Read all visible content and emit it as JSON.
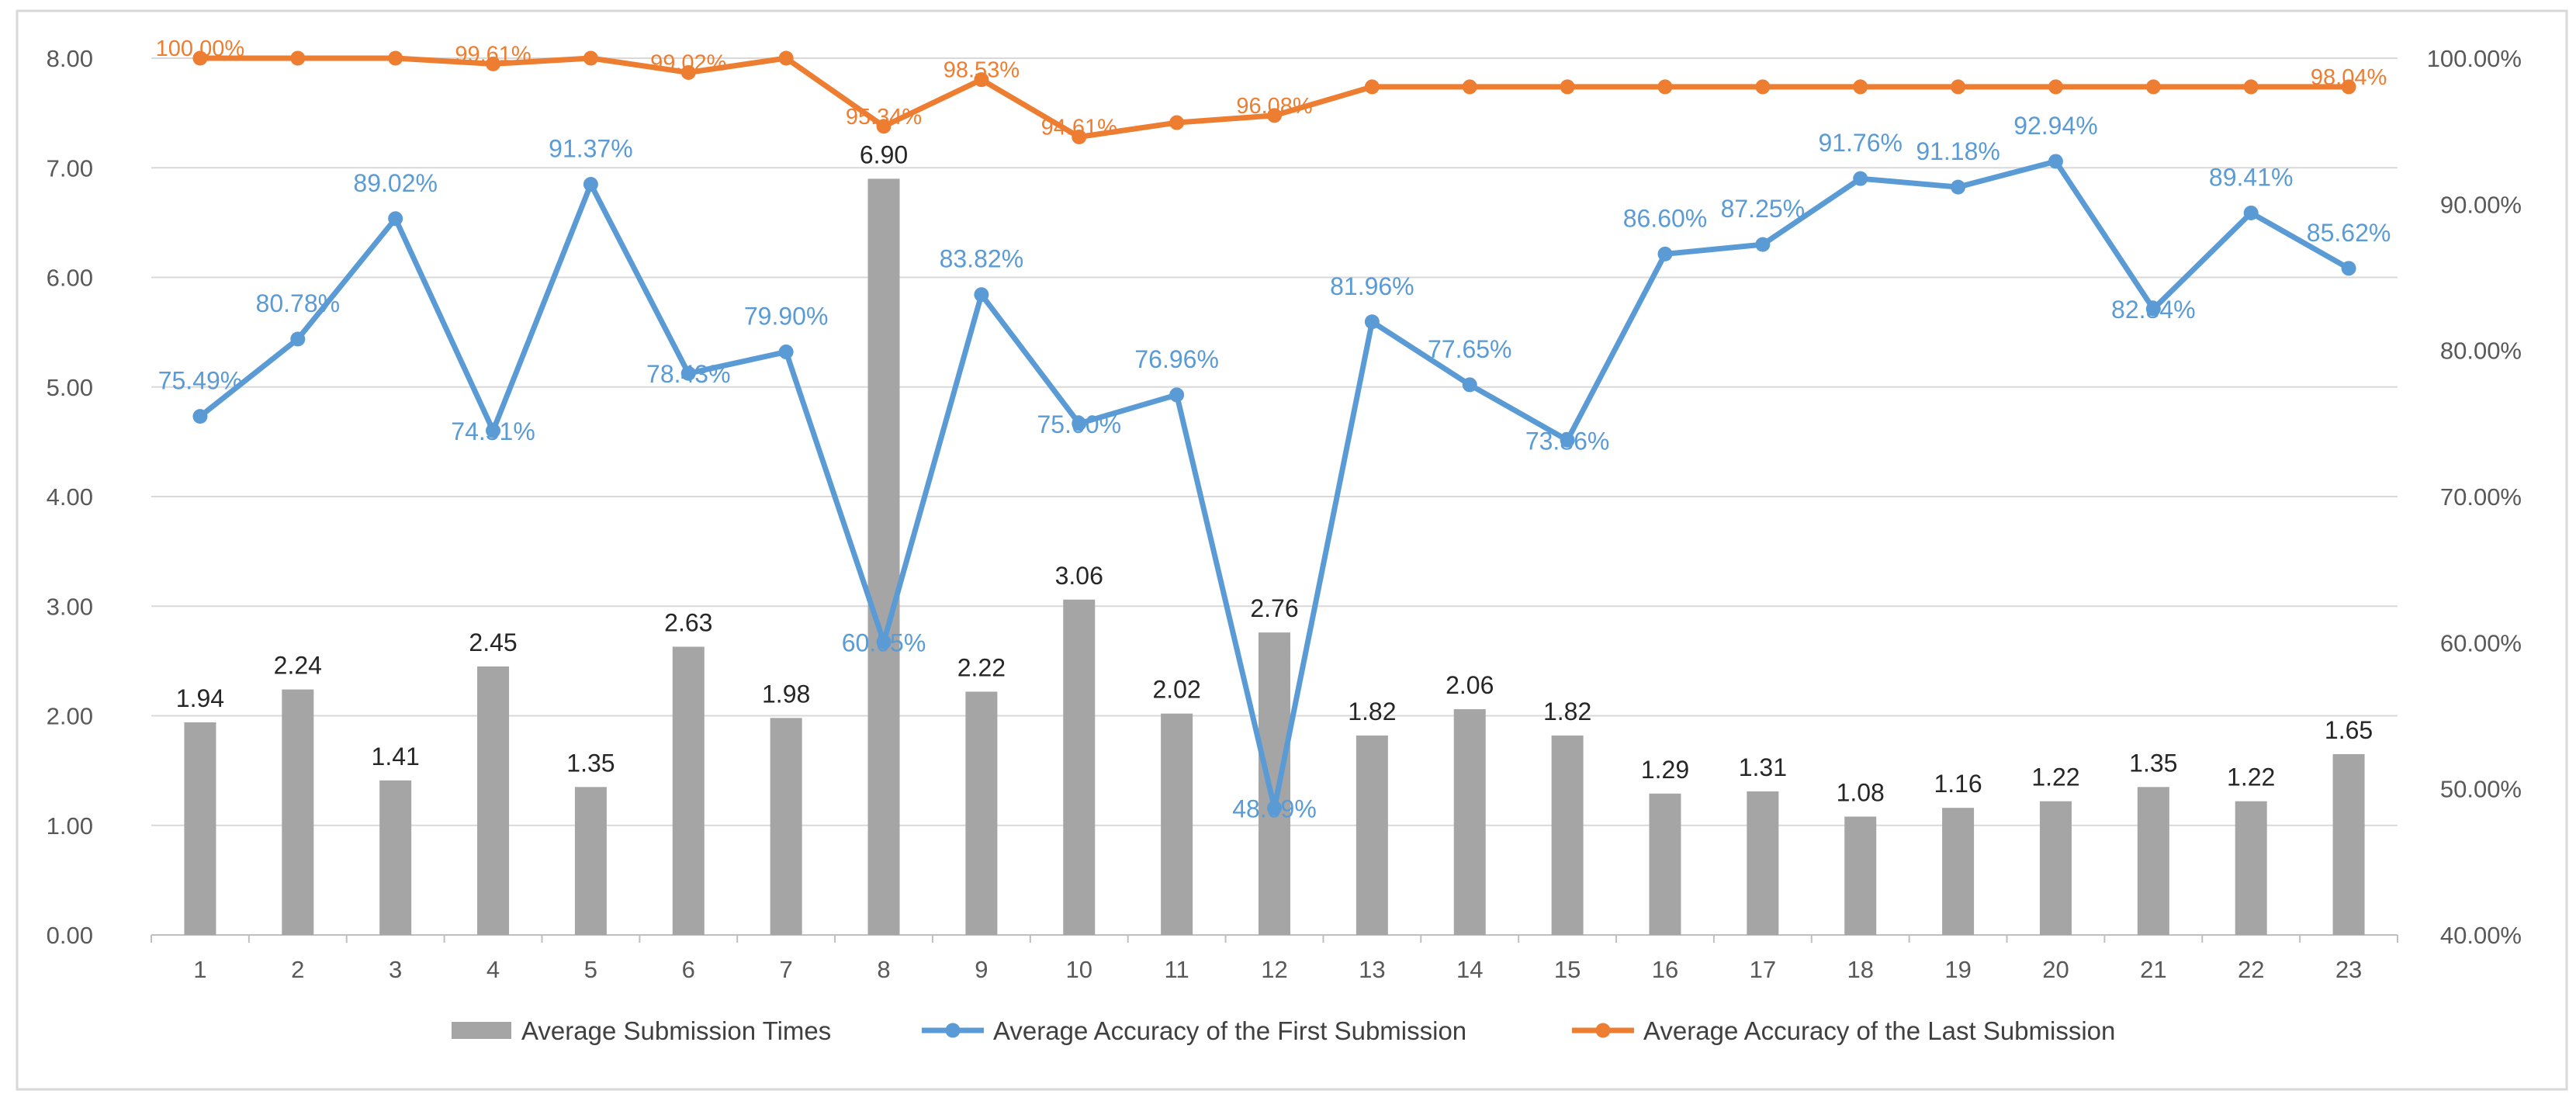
{
  "chart_data": {
    "type": "bar+line (dual axis)",
    "categories": [
      "1",
      "2",
      "3",
      "4",
      "5",
      "6",
      "7",
      "8",
      "9",
      "10",
      "11",
      "12",
      "13",
      "14",
      "15",
      "16",
      "17",
      "18",
      "19",
      "20",
      "21",
      "22",
      "23"
    ],
    "y_left": {
      "ylim": [
        0,
        8
      ],
      "ticks": [
        "0.00",
        "1.00",
        "2.00",
        "3.00",
        "4.00",
        "5.00",
        "6.00",
        "7.00",
        "8.00"
      ]
    },
    "y_right": {
      "ylim": [
        40,
        100
      ],
      "ticks": [
        "40.00%",
        "50.00%",
        "60.00%",
        "70.00%",
        "80.00%",
        "90.00%",
        "100.00%"
      ]
    },
    "series": [
      {
        "name": "Average Submission Times",
        "type": "bar",
        "axis": "left",
        "color": "#a5a5a5",
        "values": [
          1.94,
          2.24,
          1.41,
          2.45,
          1.35,
          2.63,
          1.98,
          6.9,
          2.22,
          3.06,
          2.02,
          2.76,
          1.82,
          2.06,
          1.82,
          1.29,
          1.31,
          1.08,
          1.16,
          1.22,
          1.35,
          1.22,
          1.65
        ],
        "labels": [
          "1.94",
          "2.24",
          "1.41",
          "2.45",
          "1.35",
          "2.63",
          "1.98",
          "6.90",
          "2.22",
          "3.06",
          "2.02",
          "2.76",
          "1.82",
          "2.06",
          "1.82",
          "1.29",
          "1.31",
          "1.08",
          "1.16",
          "1.22",
          "1.35",
          "1.22",
          "1.65"
        ]
      },
      {
        "name": "Average Accuracy of the First Submission",
        "type": "line",
        "axis": "right",
        "color": "#5b9bd5",
        "values": [
          75.49,
          80.78,
          89.02,
          74.51,
          91.37,
          78.43,
          79.9,
          60.05,
          83.82,
          75.0,
          76.96,
          48.69,
          81.96,
          77.65,
          73.86,
          86.6,
          87.25,
          91.76,
          91.18,
          92.94,
          82.84,
          89.41,
          85.62
        ],
        "labels": [
          "75.49%",
          "80.78%",
          "89.02%",
          "74.51%",
          "91.37%",
          "78.43%",
          "79.90%",
          "60.05%",
          "83.82%",
          "75.00%",
          "76.96%",
          "48.69%",
          "81.96%",
          "77.65%",
          "73.86%",
          "86.60%",
          "87.25%",
          "91.76%",
          "91.18%",
          "92.94%",
          "82.84%",
          "89.41%",
          "85.62%"
        ]
      },
      {
        "name": "Average Accuracy of the Last Submission",
        "type": "line",
        "axis": "right",
        "color": "#ed7d31",
        "values": [
          100.0,
          100.0,
          100.0,
          99.61,
          100.0,
          99.02,
          100.0,
          95.34,
          98.53,
          94.61,
          95.59,
          96.08,
          98.04,
          98.04,
          98.04,
          98.04,
          98.04,
          98.04,
          98.04,
          98.04,
          98.04,
          98.04,
          98.04
        ],
        "labels": [
          "100.00%",
          "",
          "",
          "99.61%",
          "",
          "99.02%",
          "",
          "95.34%",
          "98.53%",
          "94.61%",
          "",
          "96.08%",
          "",
          "",
          "",
          "",
          "",
          "",
          "",
          "",
          "",
          "",
          "98.04%"
        ]
      }
    ],
    "legend_position": "bottom",
    "grid": true
  }
}
